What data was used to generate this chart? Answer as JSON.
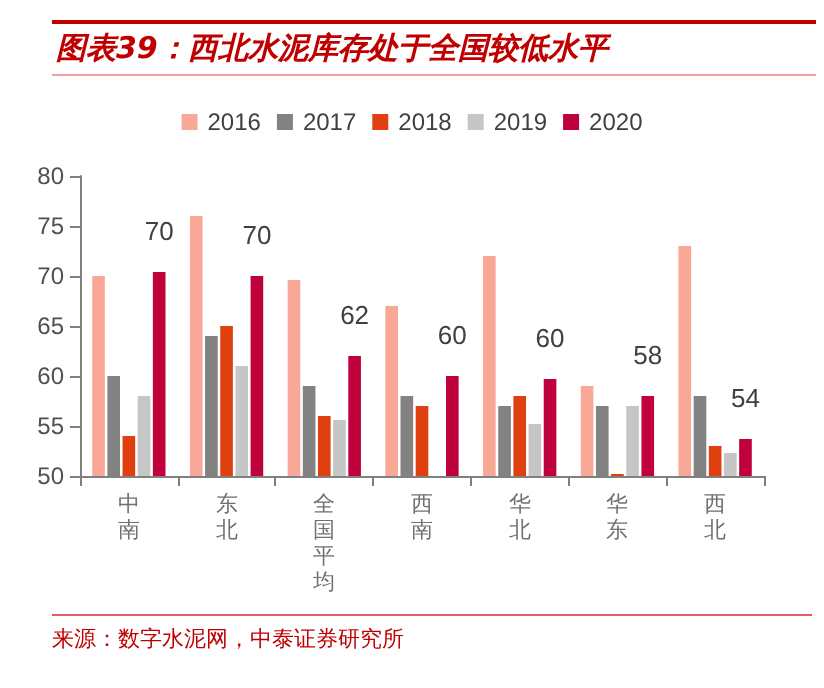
{
  "chart_data": {
    "type": "bar",
    "title": "图表39：西北水泥库存处于全国较低水平",
    "categories": [
      "中南",
      "东北",
      "全国平均",
      "西南",
      "华北",
      "华东",
      "西北"
    ],
    "series": [
      {
        "name": "2016",
        "color": "#f9a898",
        "values": [
          70,
          76,
          69.6,
          67,
          72,
          59,
          73
        ]
      },
      {
        "name": "2017",
        "color": "#828282",
        "values": [
          60,
          64,
          59,
          58,
          57,
          57,
          58
        ]
      },
      {
        "name": "2018",
        "color": "#e0400f",
        "values": [
          54,
          65,
          56,
          57,
          58,
          50.2,
          53
        ]
      },
      {
        "name": "2019",
        "color": "#c6c6c6",
        "values": [
          58,
          61,
          55.6,
          null,
          55.2,
          57,
          52.3
        ]
      },
      {
        "name": "2020",
        "color": "#c0023c",
        "values": [
          70.4,
          70,
          62,
          60,
          59.7,
          58,
          53.7
        ],
        "value_labels": [
          "70",
          "70",
          "62",
          "60",
          "60",
          "58",
          "54"
        ]
      }
    ],
    "ylim": [
      50,
      80
    ],
    "yticks": [
      50,
      55,
      60,
      65,
      70,
      75,
      80
    ],
    "grid": false,
    "legend": "top",
    "annotations": [
      "来源：数字水泥网，中泰证券研究所"
    ]
  }
}
